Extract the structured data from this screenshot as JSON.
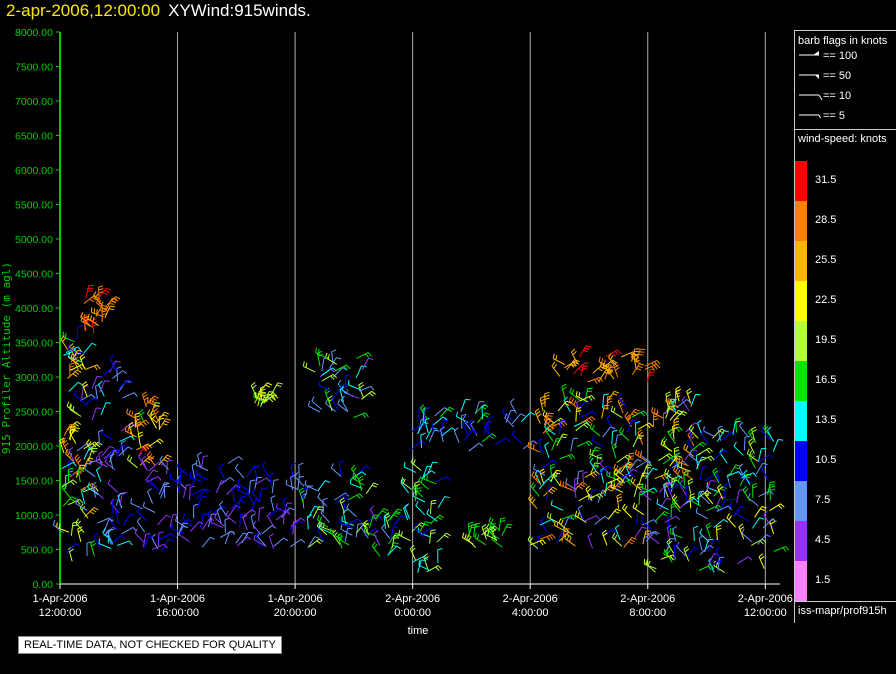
{
  "title": {
    "timestamp": "2-apr-2006,12:00:00",
    "name": "XYWind:915winds."
  },
  "notice": "REAL-TIME DATA, NOT CHECKED FOR QUALITY",
  "legend": {
    "barb_header": "barb flags in knots",
    "flags": [
      {
        "label": "== 100",
        "icon": "flag-barb-icon"
      },
      {
        "label": "== 50",
        "icon": "pennant-barb-icon"
      },
      {
        "label": "== 10",
        "icon": "full-barb-icon"
      },
      {
        "label": "== 5",
        "icon": "half-barb-icon"
      }
    ],
    "windspeed_header": "wind-speed: knots",
    "source": "iss-mapr/prof915h"
  },
  "colors": {
    "axis": "#00cc00",
    "colorbar": [
      {
        "label": "31.5",
        "color": "#ff0000"
      },
      {
        "label": "28.5",
        "color": "#ff8000"
      },
      {
        "label": "25.5",
        "color": "#ffb400"
      },
      {
        "label": "22.5",
        "color": "#ffff00"
      },
      {
        "label": "19.5",
        "color": "#b4ff32"
      },
      {
        "label": "16.5",
        "color": "#00e600"
      },
      {
        "label": "13.5",
        "color": "#00ffff"
      },
      {
        "label": "10.5",
        "color": "#0000ff"
      },
      {
        "label": "7.5",
        "color": "#6496ff"
      },
      {
        "label": "4.5",
        "color": "#9632ff"
      },
      {
        "label": "1.5",
        "color": "#ff80ff"
      }
    ]
  },
  "chart_data": {
    "type": "scatter",
    "subtype": "wind-barbs",
    "ylabel": "915 Profiler Altitude (m agl)",
    "xlabel": "time",
    "ylim": [
      0,
      8000
    ],
    "yticks": [
      "0.00",
      "500.00",
      "1000.00",
      "1500.00",
      "2000.00",
      "2500.00",
      "3000.00",
      "3500.00",
      "4000.00",
      "4500.00",
      "5000.00",
      "5500.00",
      "6000.00",
      "6500.00",
      "7000.00",
      "7500.00",
      "8000.00"
    ],
    "xlim_hours": [
      0,
      24.5
    ],
    "xticks": [
      {
        "line1": "1-Apr-2006",
        "line2": "12:00:00",
        "hour": 0
      },
      {
        "line1": "1-Apr-2006",
        "line2": "16:00:00",
        "hour": 4
      },
      {
        "line1": "1-Apr-2006",
        "line2": "20:00:00",
        "hour": 8
      },
      {
        "line1": "2-Apr-2006",
        "line2": "0:00:00",
        "hour": 12
      },
      {
        "line1": "2-Apr-2006",
        "line2": "4:00:00",
        "hour": 16
      },
      {
        "line1": "2-Apr-2006",
        "line2": "8:00:00",
        "hour": 20
      },
      {
        "line1": "2-Apr-2006",
        "line2": "12:00:00",
        "hour": 24
      }
    ],
    "grid": "vertical",
    "clusters": [
      {
        "t0": 0.0,
        "t1": 1.2,
        "z0": 300,
        "z1": 3700,
        "s0": 5,
        "s1": 30
      },
      {
        "t0": 0.8,
        "t1": 1.6,
        "z0": 3600,
        "z1": 4150,
        "s0": 24,
        "s1": 32
      },
      {
        "t0": 1.2,
        "t1": 2.2,
        "z0": 500,
        "z1": 3300,
        "s0": 3,
        "s1": 14
      },
      {
        "t0": 2.4,
        "t1": 3.4,
        "z0": 1600,
        "z1": 2600,
        "s0": 17,
        "s1": 31
      },
      {
        "t0": 2.8,
        "t1": 5.8,
        "z0": 450,
        "z1": 1800,
        "s0": 3,
        "s1": 12
      },
      {
        "t0": 5.8,
        "t1": 8.0,
        "z0": 450,
        "z1": 1600,
        "s0": 4,
        "s1": 12
      },
      {
        "t0": 8.0,
        "t1": 10.5,
        "z0": 500,
        "z1": 1600,
        "s0": 6,
        "s1": 20
      },
      {
        "t0": 10.4,
        "t1": 11.4,
        "z0": 400,
        "z1": 1000,
        "s0": 3,
        "s1": 21
      },
      {
        "t0": 6.5,
        "t1": 7.2,
        "z0": 2550,
        "z1": 2800,
        "s0": 16,
        "s1": 23
      },
      {
        "t0": 8.6,
        "t1": 10.4,
        "z0": 2400,
        "z1": 3300,
        "s0": 4,
        "s1": 20
      },
      {
        "t0": 11.8,
        "t1": 12.9,
        "z0": 150,
        "z1": 1700,
        "s0": 11,
        "s1": 21
      },
      {
        "t0": 11.9,
        "t1": 15.8,
        "z0": 1900,
        "z1": 2500,
        "s0": 6,
        "s1": 16
      },
      {
        "t0": 13.7,
        "t1": 15.2,
        "z0": 500,
        "z1": 800,
        "s0": 15,
        "s1": 22
      },
      {
        "t0": 16.0,
        "t1": 20.0,
        "z0": 500,
        "z1": 1600,
        "s0": 4,
        "s1": 28
      },
      {
        "t0": 16.3,
        "t1": 21.7,
        "z0": 1300,
        "z1": 2700,
        "s0": 4,
        "s1": 30
      },
      {
        "t0": 20.0,
        "t1": 24.4,
        "z0": 150,
        "z1": 1400,
        "s0": 3,
        "s1": 24
      },
      {
        "t0": 21.5,
        "t1": 24.4,
        "z0": 1400,
        "z1": 2200,
        "s0": 6,
        "s1": 20
      },
      {
        "t0": 17.0,
        "t1": 20.0,
        "z0": 2900,
        "z1": 3300,
        "s0": 24,
        "s1": 31
      }
    ]
  }
}
